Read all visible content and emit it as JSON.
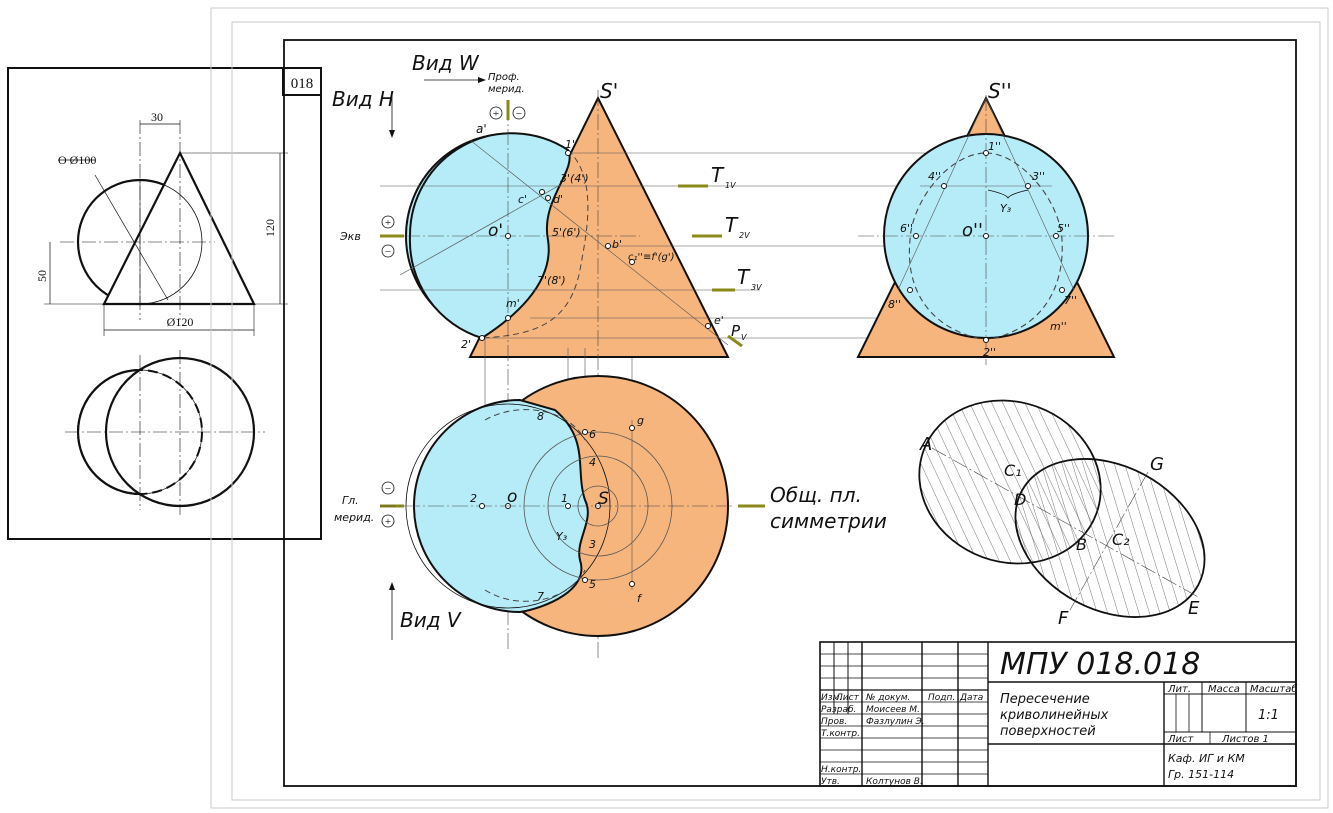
{
  "colors": {
    "blue": "#b6ecf7",
    "orange": "#f7b57e",
    "olive": "#8a8a1a",
    "line": "#1a1a1a"
  },
  "task": {
    "number": "018",
    "dim_30": "30",
    "dim_sphere": "O Ø100",
    "dim_120": "120",
    "dim_50": "50",
    "dim_d120": "Ø120"
  },
  "views": {
    "view_w": "Вид W",
    "view_h": "Вид H",
    "view_v": "Вид V",
    "prof_merid_1": "Проф.",
    "prof_merid_2": "мерид.",
    "ekv": "Экв",
    "gl_merid_1": "Гл.",
    "gl_merid_2": "мерид.",
    "symmetry_1": "Общ. пл.",
    "symmetry_2": "симметрии",
    "plus": "+",
    "minus": "−"
  },
  "labels_front": {
    "s": "S'",
    "a": "a'",
    "o": "o'",
    "c": "c'",
    "d": "d'",
    "b": "b'",
    "cg": "c₁''≡f'(g')",
    "e": "e'",
    "m": "m'",
    "p1": "1'",
    "p2": "2'",
    "p34": "3'(4')",
    "p56": "5'(6')",
    "p78": "7'(8')",
    "t1": "T",
    "t1s": "1V",
    "t2": "T",
    "t2s": "2V",
    "t3": "T",
    "t3s": "3V",
    "pv": "P",
    "pvs": "V"
  },
  "labels_side": {
    "s": "S''",
    "o": "o''",
    "p1": "1''",
    "p2": "2''",
    "p3": "3''",
    "p4": "4''",
    "p5": "5''",
    "p6": "6''",
    "p7": "7''",
    "p8": "8''",
    "m": "m''",
    "y3": "Y₃"
  },
  "labels_top": {
    "o": "o",
    "s": "S",
    "p1": "1",
    "p2": "2",
    "p3": "3",
    "p4": "4",
    "p5": "5",
    "p6": "6",
    "p7": "7",
    "p8": "8",
    "g": "g",
    "f": "f",
    "y3": "Y₃"
  },
  "labels_section": {
    "a": "A",
    "c1": "C₁",
    "d": "D",
    "b": "B",
    "c2": "C₂",
    "g": "G",
    "f": "F",
    "e": "E"
  },
  "title_block": {
    "designation": "МПУ 018.018",
    "title_1": "Пересечение",
    "title_2": "криволинейных",
    "title_3": "поверхностей",
    "h_izm": "Изм.",
    "h_list": "Лист",
    "h_ndok": "№ докум.",
    "h_podp": "Подп.",
    "h_data": "Дата",
    "razrab": "Разраб.",
    "razrab_name": "Моисеев М.",
    "prov": "Пров.",
    "prov_name": "Фазлулин Э.",
    "tkontr": "Т.контр.",
    "nkontr": "Н.контр.",
    "utv": "Утв.",
    "utv_name": "Колтунов В.",
    "lit": "Лит.",
    "massa": "Масса",
    "masshtab": "Масштаб",
    "scale": "1:1",
    "sheet": "Лист",
    "sheets": "Листов 1",
    "dept": "Каф. ИГ и КМ",
    "group": "Гр. 151-114"
  }
}
